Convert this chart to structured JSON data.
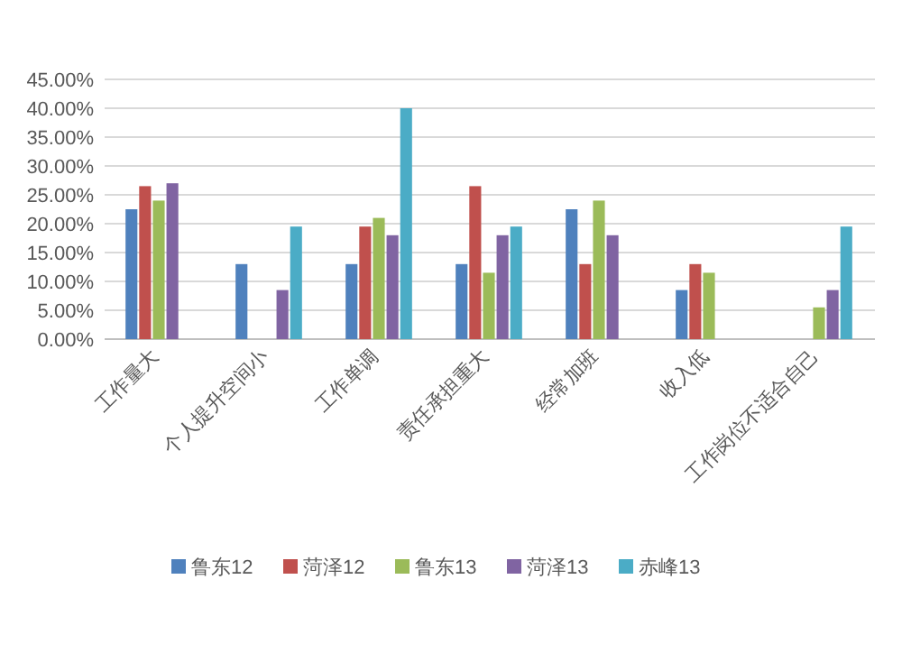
{
  "chart_data": {
    "type": "bar",
    "categories": [
      "工作量大",
      "个人提升空间小",
      "工作单调",
      "责任承担重大",
      "经常加班",
      "收入低",
      "工作岗位不适合自己"
    ],
    "series": [
      {
        "name": "鲁东12",
        "color": "#4f81bd",
        "values": [
          22.5,
          13,
          13,
          13,
          22.5,
          8.5,
          null
        ]
      },
      {
        "name": "菏泽12",
        "color": "#c0504d",
        "values": [
          26.5,
          null,
          19.5,
          26.5,
          13,
          13,
          null
        ]
      },
      {
        "name": "鲁东13",
        "color": "#9bbb59",
        "values": [
          24,
          null,
          21,
          11.5,
          24,
          11.5,
          5.5
        ]
      },
      {
        "name": "菏泽13",
        "color": "#8064a2",
        "values": [
          27,
          8.5,
          18,
          18,
          18,
          null,
          8.5
        ]
      },
      {
        "name": "赤峰13",
        "color": "#4bacc6",
        "values": [
          null,
          19.5,
          40,
          19.5,
          null,
          null,
          19.5
        ]
      }
    ],
    "ylim": [
      0,
      45
    ],
    "yticks": [
      {
        "value": 0,
        "label": "0.00%"
      },
      {
        "value": 5,
        "label": "5.00%"
      },
      {
        "value": 10,
        "label": "10.00%"
      },
      {
        "value": 15,
        "label": "15.00%"
      },
      {
        "value": 20,
        "label": "20.00%"
      },
      {
        "value": 25,
        "label": "25.00%"
      },
      {
        "value": 30,
        "label": "30.00%"
      },
      {
        "value": 35,
        "label": "35.00%"
      },
      {
        "value": 40,
        "label": "40.00%"
      },
      {
        "value": 45,
        "label": "45.00%"
      }
    ],
    "grid": "y",
    "legend": "bottom"
  }
}
